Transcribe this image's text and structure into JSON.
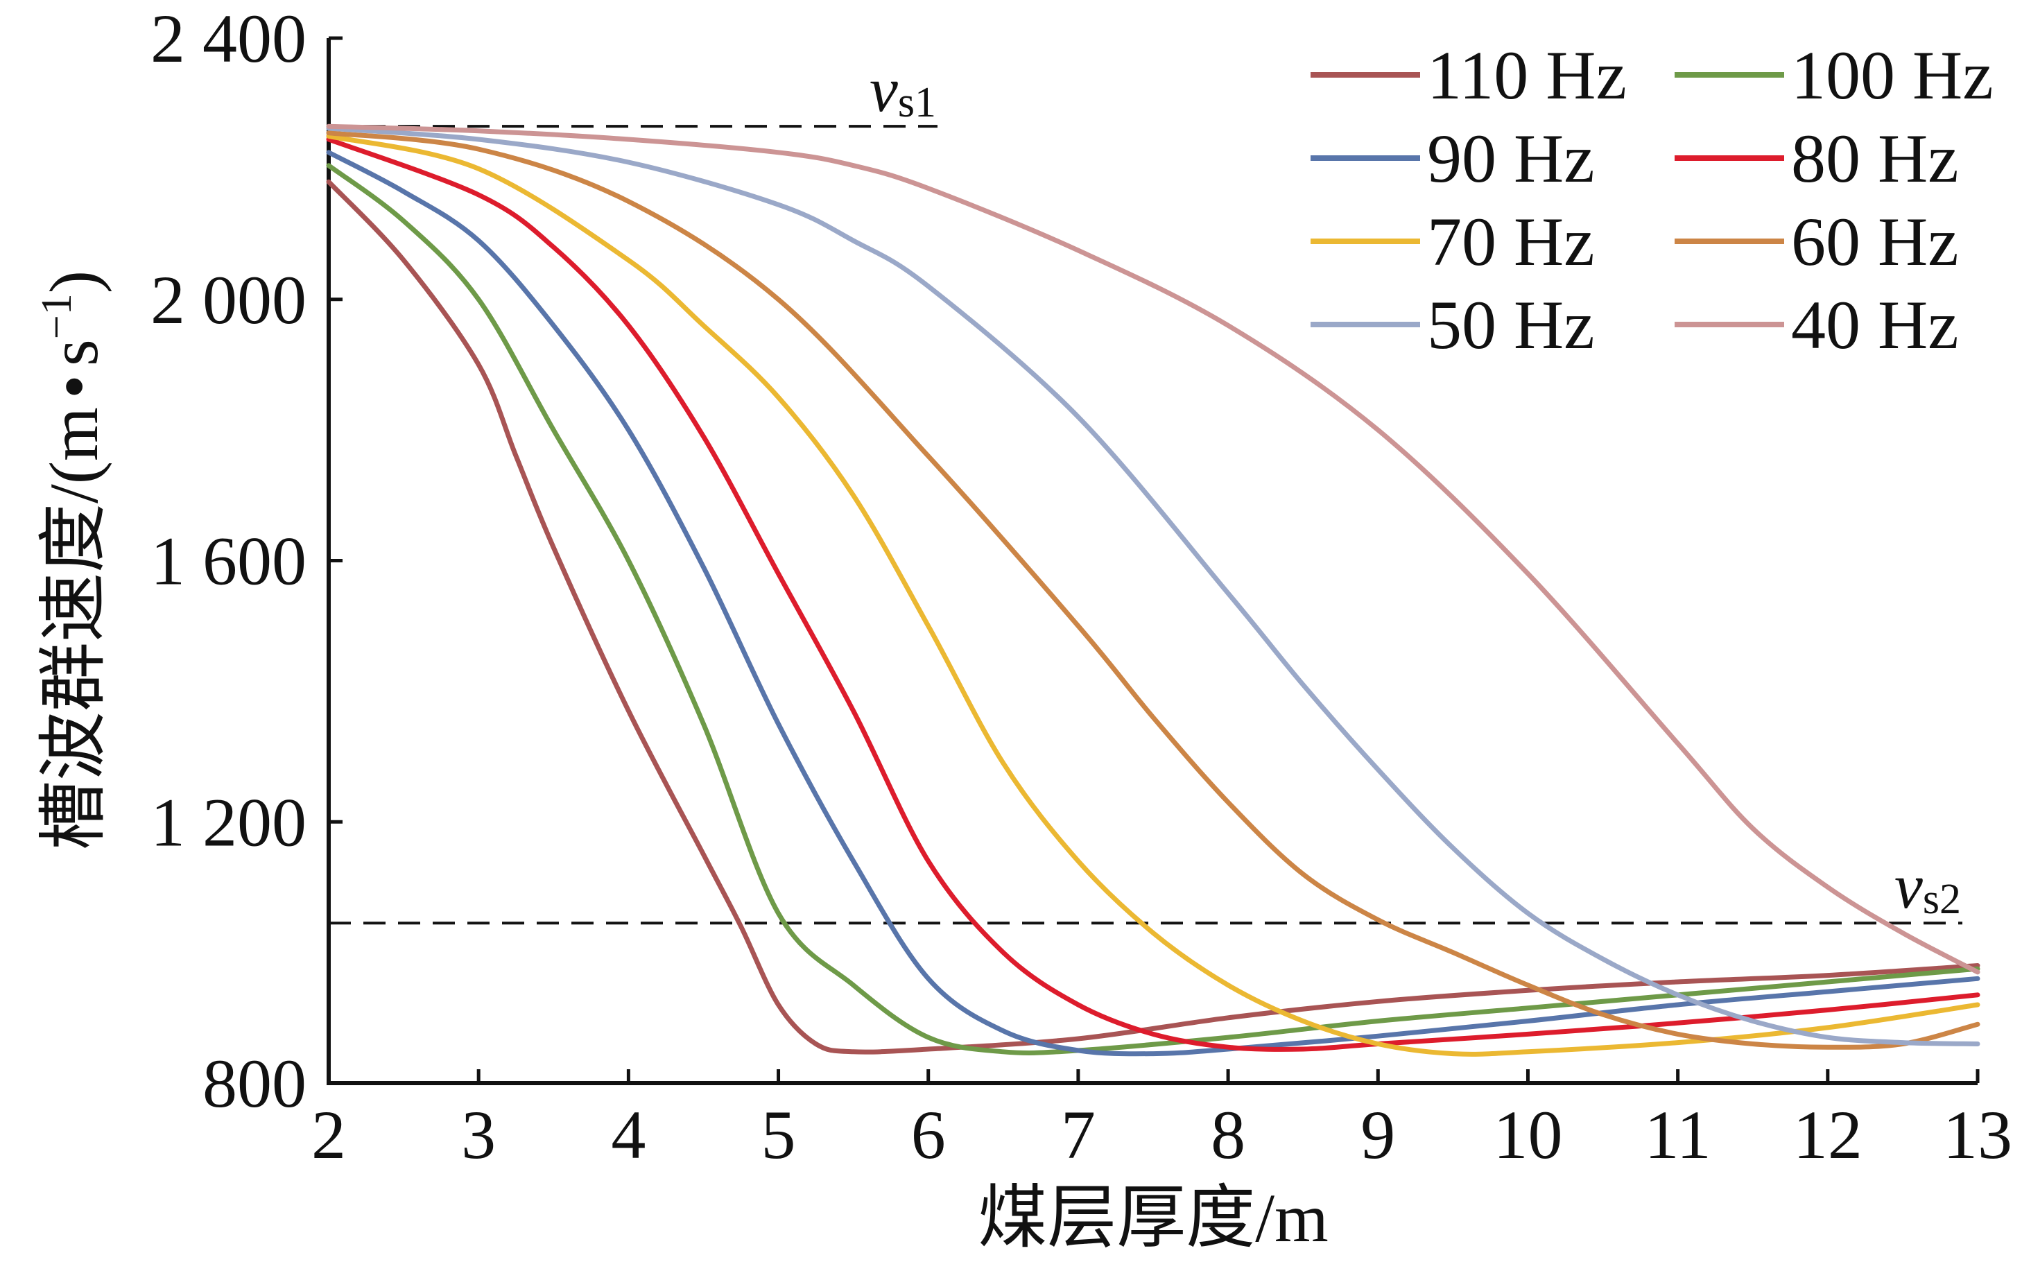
{
  "chart_data": {
    "type": "line",
    "xlabel": "煤层厚度/m",
    "ylabel": "槽波群速度/(m·s⁻¹)",
    "ylabel_parts": {
      "prefix": "槽波群速度/(m",
      "dot": "•",
      "unit": "s",
      "exponent": "−1",
      "suffix": ")"
    },
    "xlim": [
      2,
      13
    ],
    "ylim": [
      800,
      2400
    ],
    "xticks": [
      "2",
      "3",
      "4",
      "5",
      "6",
      "7",
      "8",
      "9",
      "10",
      "11",
      "12",
      "13"
    ],
    "yticks": [
      "800",
      "1 200",
      "1 600",
      "2 000",
      "2 400"
    ],
    "grid": false,
    "legend_position": "top-right",
    "reference_lines": [
      {
        "name": "vs1",
        "symbol": "v",
        "subscript": "s1",
        "y": 2265
      },
      {
        "name": "vs2",
        "symbol": "v",
        "subscript": "s2",
        "y": 1045
      }
    ],
    "series": [
      {
        "name": "110 Hz",
        "color": "#a85454",
        "x": [
          2,
          2.5,
          3,
          3.25,
          3.5,
          4,
          4.5,
          4.75,
          5,
          5.25,
          5.5,
          6,
          7,
          8,
          9,
          10,
          11,
          12,
          13
        ],
        "y": [
          2180,
          2060,
          1900,
          1760,
          1620,
          1370,
          1150,
          1040,
          920,
          860,
          848,
          852,
          868,
          900,
          925,
          942,
          955,
          965,
          980
        ]
      },
      {
        "name": "100 Hz",
        "color": "#6e9a48",
        "x": [
          2,
          2.5,
          3,
          3.5,
          4,
          4.5,
          5,
          5.5,
          6,
          6.5,
          7,
          8,
          9,
          10,
          11,
          12,
          13
        ],
        "y": [
          2205,
          2120,
          2000,
          1800,
          1600,
          1350,
          1060,
          950,
          870,
          848,
          850,
          870,
          895,
          915,
          935,
          955,
          975
        ]
      },
      {
        "name": "90 Hz",
        "color": "#5875aa",
        "x": [
          2,
          2.5,
          3,
          3.5,
          4,
          4.5,
          5,
          5.5,
          6,
          6.5,
          7,
          7.5,
          8,
          9,
          10,
          11,
          12,
          13
        ],
        "y": [
          2225,
          2165,
          2090,
          1960,
          1800,
          1590,
          1350,
          1140,
          960,
          880,
          850,
          845,
          852,
          872,
          895,
          920,
          940,
          960
        ]
      },
      {
        "name": "80 Hz",
        "color": "#dd1c2c",
        "x": [
          2,
          3,
          3.5,
          4,
          4.5,
          5,
          5.5,
          6,
          6.5,
          7,
          7.5,
          8,
          8.5,
          9,
          10,
          11,
          12,
          13
        ],
        "y": [
          2245,
          2160,
          2080,
          1960,
          1790,
          1580,
          1370,
          1140,
          1000,
          920,
          875,
          855,
          852,
          860,
          875,
          892,
          912,
          935
        ]
      },
      {
        "name": "70 Hz",
        "color": "#ebb832",
        "x": [
          2,
          3,
          4,
          4.5,
          5,
          5.5,
          6,
          6.5,
          7,
          7.5,
          8,
          8.5,
          9,
          9.5,
          10,
          11,
          12,
          13
        ],
        "y": [
          2250,
          2200,
          2060,
          1960,
          1850,
          1700,
          1500,
          1290,
          1140,
          1030,
          950,
          895,
          860,
          845,
          848,
          862,
          885,
          920
        ]
      },
      {
        "name": "60 Hz",
        "color": "#cc8546",
        "x": [
          2,
          3,
          4,
          5,
          6,
          7,
          7.5,
          8,
          8.5,
          9,
          9.5,
          10,
          10.5,
          11,
          11.5,
          12,
          12.5,
          13
        ],
        "y": [
          2255,
          2230,
          2150,
          2000,
          1760,
          1500,
          1360,
          1230,
          1120,
          1050,
          1000,
          950,
          905,
          875,
          860,
          855,
          860,
          890
        ]
      },
      {
        "name": "50 Hz",
        "color": "#9aa8c8",
        "x": [
          2,
          3,
          4,
          5,
          5.5,
          6,
          7,
          8,
          8.5,
          9,
          9.5,
          10,
          10.5,
          11,
          11.5,
          12,
          12.5,
          13
        ],
        "y": [
          2262,
          2245,
          2210,
          2145,
          2090,
          2020,
          1820,
          1550,
          1410,
          1280,
          1160,
          1060,
          990,
          935,
          895,
          870,
          862,
          860
        ]
      },
      {
        "name": "40 Hz",
        "color": "#cc9494",
        "x": [
          2,
          3,
          4,
          5,
          5.5,
          6,
          7,
          8,
          9,
          10,
          11,
          11.5,
          12,
          12.5,
          13
        ],
        "y": [
          2265,
          2258,
          2245,
          2225,
          2205,
          2170,
          2075,
          1960,
          1800,
          1580,
          1320,
          1190,
          1100,
          1030,
          970
        ]
      }
    ]
  }
}
